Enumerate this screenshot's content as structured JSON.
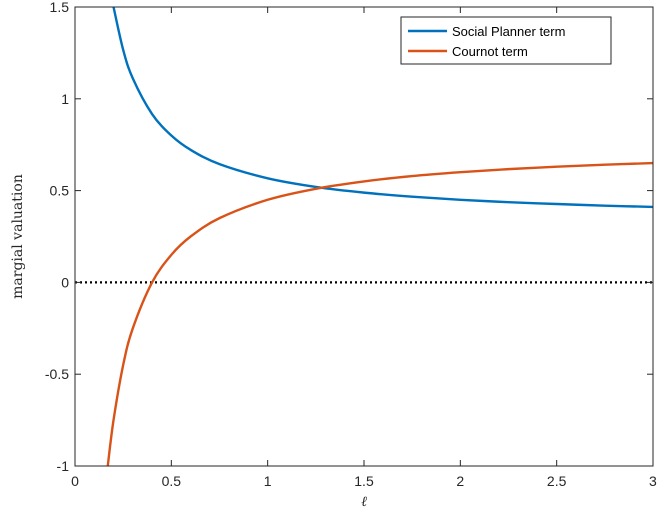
{
  "chart_data": {
    "type": "line",
    "title": "",
    "xlabel": "ℓ",
    "ylabel": "margial valuation",
    "xlim": [
      0,
      3
    ],
    "ylim": [
      -1,
      1.5
    ],
    "x_ticks": [
      0,
      0.5,
      1,
      1.5,
      2,
      2.5,
      3
    ],
    "x_tick_labels": [
      "0",
      "0.5",
      "1",
      "1.5",
      "2",
      "2.5",
      "3"
    ],
    "y_ticks": [
      -1,
      -0.5,
      0,
      0.5,
      1,
      1.5
    ],
    "y_tick_labels": [
      "-1",
      "-0.5",
      "0",
      "0.5",
      "1",
      "1.5"
    ],
    "grid": false,
    "legend_position": "top-right",
    "series": [
      {
        "name": "Social Planner term",
        "color": "#0072BD",
        "x": [
          0.2,
          0.25,
          0.3,
          0.4,
          0.5,
          0.6,
          0.75,
          1.0,
          1.25,
          1.5,
          1.75,
          2.0,
          2.25,
          2.5,
          2.75,
          3.0
        ],
        "y": [
          1.5,
          1.267,
          1.111,
          0.917,
          0.8,
          0.722,
          0.644,
          0.567,
          0.52,
          0.489,
          0.467,
          0.45,
          0.437,
          0.427,
          0.418,
          0.411
        ]
      },
      {
        "name": "Cournot term",
        "color": "#D95319",
        "x": [
          0.17,
          0.2,
          0.25,
          0.3,
          0.4,
          0.5,
          0.6,
          0.75,
          1.0,
          1.25,
          1.5,
          1.75,
          2.0,
          2.25,
          2.5,
          2.75,
          3.0
        ],
        "y": [
          -1.0,
          -0.75,
          -0.45,
          -0.25,
          0.0,
          0.15,
          0.25,
          0.35,
          0.45,
          0.51,
          0.55,
          0.579,
          0.6,
          0.617,
          0.63,
          0.641,
          0.65
        ]
      }
    ],
    "reference_line": {
      "y": 0,
      "style": "dotted",
      "color": "#000000"
    }
  }
}
